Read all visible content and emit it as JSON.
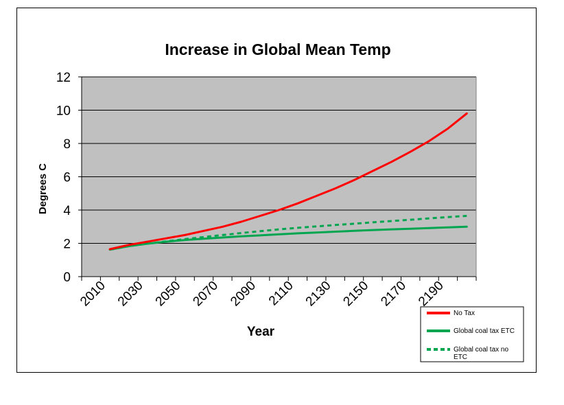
{
  "chart_data": {
    "type": "line",
    "title": "Increase in Global Mean Temp",
    "xlabel": "Year",
    "ylabel": "Degrees C",
    "ylim": [
      0,
      12
    ],
    "yticks": [
      0,
      2,
      4,
      6,
      8,
      10,
      12
    ],
    "xlim": [
      2000,
      2210
    ],
    "xticks": [
      2010,
      2030,
      2050,
      2070,
      2090,
      2110,
      2130,
      2150,
      2170,
      2190
    ],
    "grid": true,
    "legend_position": "bottom-right",
    "x": [
      2015,
      2025,
      2035,
      2045,
      2055,
      2065,
      2075,
      2085,
      2095,
      2105,
      2115,
      2125,
      2135,
      2145,
      2155,
      2165,
      2175,
      2185,
      2195,
      2205
    ],
    "series": [
      {
        "name": "No Tax",
        "color": "#ff0000",
        "style": "solid",
        "values": [
          1.65,
          1.9,
          2.1,
          2.3,
          2.5,
          2.75,
          3.0,
          3.3,
          3.65,
          4.0,
          4.4,
          4.85,
          5.3,
          5.8,
          6.35,
          6.9,
          7.5,
          8.15,
          8.9,
          9.8
        ]
      },
      {
        "name": "Global coal tax ETC",
        "color": "#00a550",
        "style": "solid",
        "values": [
          1.62,
          1.83,
          1.98,
          2.1,
          2.2,
          2.28,
          2.35,
          2.42,
          2.48,
          2.54,
          2.6,
          2.65,
          2.7,
          2.75,
          2.8,
          2.84,
          2.88,
          2.92,
          2.96,
          3.0
        ]
      },
      {
        "name": "Global coal tax no ETC",
        "color": "#00a550",
        "style": "dashed",
        "values": [
          1.62,
          1.83,
          1.98,
          2.12,
          2.25,
          2.38,
          2.5,
          2.62,
          2.73,
          2.84,
          2.93,
          3.02,
          3.1,
          3.18,
          3.26,
          3.34,
          3.42,
          3.5,
          3.58,
          3.65
        ]
      }
    ]
  }
}
